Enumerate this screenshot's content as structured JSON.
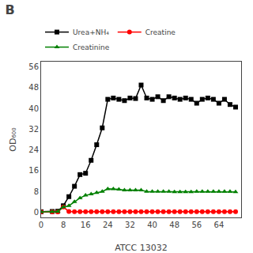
{
  "chart_data": {
    "type": "line",
    "title": "B",
    "xlabel": "ATCC 13032",
    "ylabel": "OD₆₀₀",
    "xlim": [
      0,
      72
    ],
    "ylim": [
      -2,
      58
    ],
    "xticks": [
      0,
      8,
      16,
      24,
      32,
      40,
      48,
      56,
      64
    ],
    "yticks": [
      0,
      8,
      16,
      24,
      32,
      40,
      48,
      56
    ],
    "grid": false,
    "legend": "upper left",
    "x": [
      0,
      4,
      6,
      8,
      10,
      12,
      14,
      16,
      18,
      20,
      22,
      24,
      26,
      28,
      30,
      32,
      34,
      36,
      38,
      40,
      42,
      44,
      46,
      48,
      50,
      52,
      54,
      56,
      58,
      60,
      62,
      64,
      66,
      68,
      70
    ],
    "series": [
      {
        "name": "Urea+NH₄",
        "color": "#000000",
        "marker": "square",
        "values": [
          0.2,
          0.3,
          0.4,
          2.5,
          6.0,
          10.0,
          14.5,
          15.0,
          20.0,
          26.0,
          32.5,
          43.5,
          44.0,
          43.5,
          43.0,
          44.0,
          43.8,
          49.0,
          44.0,
          43.5,
          44.5,
          43.0,
          44.5,
          44.0,
          43.5,
          44.0,
          43.5,
          42.0,
          43.5,
          44.0,
          43.5,
          42.0,
          43.5,
          41.5,
          40.5
        ]
      },
      {
        "name": "Creatine",
        "color": "#ff0000",
        "marker": "circle",
        "values": [
          0.1,
          0.1,
          0.15,
          2.0,
          0.3,
          0.2,
          0.2,
          0.2,
          0.2,
          0.2,
          0.2,
          0.2,
          0.2,
          0.2,
          0.2,
          0.2,
          0.2,
          0.2,
          0.2,
          0.2,
          0.2,
          0.2,
          0.2,
          0.2,
          0.2,
          0.2,
          0.2,
          0.2,
          0.2,
          0.2,
          0.2,
          0.2,
          0.2,
          0.2,
          0.2
        ]
      },
      {
        "name": "Creatinine",
        "color": "#008000",
        "marker": "triangle-up",
        "values": [
          0.1,
          0.2,
          0.3,
          2.0,
          2.5,
          4.0,
          5.5,
          6.5,
          7.0,
          7.5,
          8.0,
          9.0,
          9.0,
          8.8,
          8.5,
          8.5,
          8.5,
          8.5,
          8.0,
          8.0,
          8.0,
          8.0,
          8.0,
          7.8,
          7.8,
          7.8,
          7.8,
          8.0,
          8.0,
          8.0,
          8.0,
          8.0,
          8.0,
          8.0,
          7.8
        ]
      }
    ]
  }
}
